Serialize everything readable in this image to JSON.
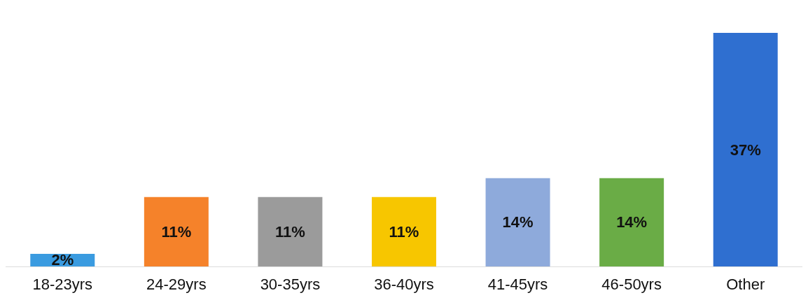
{
  "chart_data": {
    "type": "bar",
    "categories": [
      "18-23yrs",
      "24-29yrs",
      "30-35yrs",
      "36-40yrs",
      "41-45yrs",
      "46-50yrs",
      "Other"
    ],
    "values": [
      2,
      11,
      11,
      11,
      14,
      14,
      37
    ],
    "colors": [
      "#3a9be0",
      "#f5822a",
      "#9b9b9b",
      "#f7c600",
      "#8eaadb",
      "#6aac46",
      "#2f6fd0"
    ],
    "value_labels": [
      "2%",
      "11%",
      "11%",
      "11%",
      "14%",
      "14%",
      "37%"
    ],
    "grid": false
  }
}
